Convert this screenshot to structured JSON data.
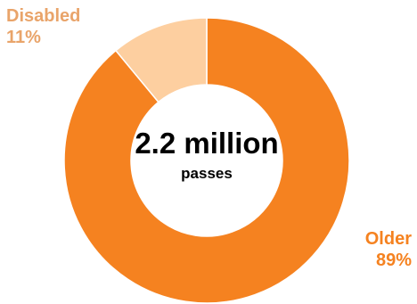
{
  "chart_data": {
    "type": "pie",
    "variant": "donut",
    "center_value": "2.2 million",
    "center_unit": "passes",
    "slices": [
      {
        "label": "Older",
        "value": 89,
        "value_text": "89%",
        "color": "#f58220"
      },
      {
        "label": "Disabled",
        "value": 11,
        "value_text": "11%",
        "color": "#fdcfa0"
      }
    ],
    "label_colors": {
      "Older": "#f58220",
      "Disabled": "#e9a46a"
    }
  }
}
